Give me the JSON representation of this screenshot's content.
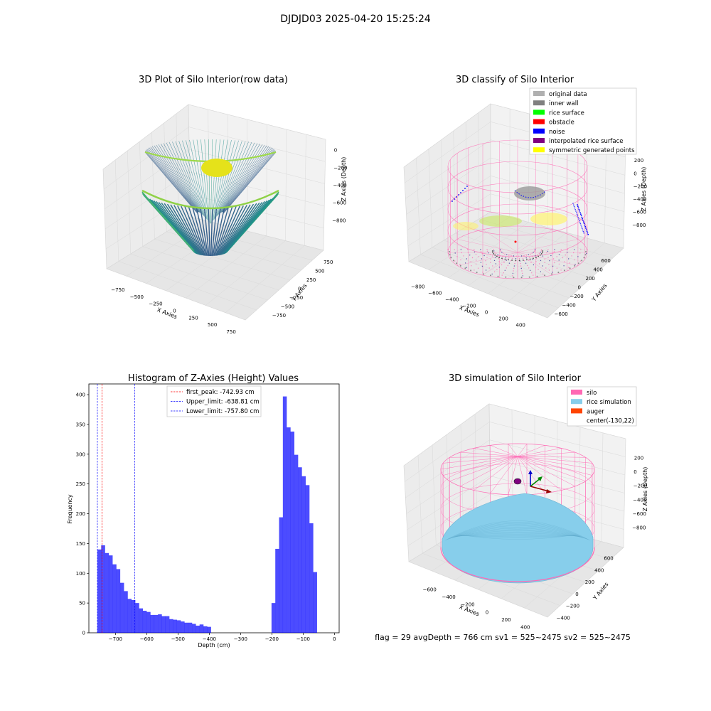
{
  "figure": {
    "suptitle": "DJDJD03 2025-04-20 15:25:24",
    "footer": "flag = 29  avgDepth = 766 cm  sv1 = 525~2475  sv2 = 525~2475"
  },
  "panels": {
    "raw": {
      "title": "3D Plot of Silo Interior(row data)",
      "xlabel": "X Axies",
      "ylabel": "Y Axies",
      "zlabel": "Z Axies (Depth)",
      "xticks": [
        "−750",
        "−500",
        "−250",
        "0",
        "250",
        "500",
        "750"
      ],
      "yticks": [
        "−750",
        "−500",
        "−250",
        "0",
        "250",
        "500",
        "750"
      ],
      "zticks": [
        "0",
        "−200",
        "−400",
        "−600",
        "−800"
      ]
    },
    "classify": {
      "title": "3D classify of Silo Interior",
      "xlabel": "X Axies",
      "ylabel": "Y Axies",
      "zlabel": "Z Axies (Depth)",
      "xticks": [
        "−800",
        "−600",
        "−400",
        "−200",
        "0",
        "200",
        "400"
      ],
      "yticks": [
        "600",
        "400",
        "200",
        "0",
        "−200",
        "−400",
        "−600"
      ],
      "zticks": [
        "200",
        "0",
        "−200",
        "−400",
        "−600",
        "−800"
      ],
      "legend": [
        {
          "label": "original data",
          "color": "#b0b0b0"
        },
        {
          "label": "inner wall",
          "color": "#808080"
        },
        {
          "label": "rice surface",
          "color": "#00ff00"
        },
        {
          "label": "obstacle",
          "color": "#ff0000"
        },
        {
          "label": "noise",
          "color": "#0000ff"
        },
        {
          "label": "interpolated rice surface",
          "color": "#800080"
        },
        {
          "label": "symmetric generated points",
          "color": "#ffff00"
        }
      ]
    },
    "simulation": {
      "title": "3D simulation of Silo Interior",
      "xlabel": "X Axies",
      "ylabel": "Y Axies",
      "zlabel": "Z Axies (Depth)",
      "xticks": [
        "−600",
        "−400",
        "−200",
        "0",
        "200",
        "400"
      ],
      "yticks": [
        "600",
        "400",
        "200",
        "0",
        "−200",
        "−400"
      ],
      "zticks": [
        "200",
        "0",
        "−200",
        "−400",
        "−600",
        "−800"
      ],
      "legend": [
        {
          "label": "silo",
          "color": "#ff69b4"
        },
        {
          "label": "rice simulation",
          "color": "#87ceeb"
        },
        {
          "label": "auger",
          "color": "#ff4500"
        },
        {
          "label": "center(-130,22)",
          "color": ""
        }
      ]
    }
  },
  "chart_data": [
    {
      "type": "bar",
      "title": "Histogram of Z-Axies (Height) Values",
      "xlabel": "Depth (cm)",
      "ylabel": "Frequency",
      "xlim": [
        -785,
        15
      ],
      "ylim": [
        0,
        418
      ],
      "xticks": [
        -700,
        -600,
        -500,
        -400,
        -300,
        -200,
        -100,
        0
      ],
      "yticks": [
        0,
        50,
        100,
        150,
        200,
        250,
        300,
        350,
        400
      ],
      "bar_color": "#0000ff",
      "bin_width": 12.1,
      "bin_left": [
        -757.8,
        -745.7,
        -733.6,
        -721.5,
        -709.4,
        -697.3,
        -685.2,
        -673.1,
        -661.0,
        -648.9,
        -636.8,
        -624.7,
        -612.6,
        -600.5,
        -588.4,
        -576.3,
        -564.2,
        -552.1,
        -540.0,
        -527.9,
        -515.8,
        -503.7,
        -491.6,
        -479.5,
        -467.4,
        -455.3,
        -443.2,
        -431.1,
        -419.0,
        -406.9,
        -394.8,
        -382.7,
        -370.6,
        -358.5,
        -346.4,
        -334.3,
        -322.2,
        -310.1,
        -298.0,
        -285.9,
        -273.8,
        -261.7,
        -249.6,
        -237.5,
        -225.4,
        -213.3,
        -201.2,
        -189.1,
        -177.0,
        -164.9,
        -152.8,
        -140.7,
        -128.6,
        -116.5,
        -104.4,
        -92.3,
        -80.2,
        -68.1,
        -56.0,
        -43.9,
        -31.8
      ],
      "counts": [
        140,
        147,
        134,
        130,
        115,
        107,
        84,
        70,
        57,
        55,
        50,
        41,
        37,
        35,
        30,
        30,
        31,
        28,
        28,
        23,
        22,
        21,
        19,
        17,
        17,
        15,
        12,
        14,
        11,
        10,
        0,
        0,
        0,
        0,
        0,
        0,
        0,
        0,
        0,
        0,
        0,
        0,
        0,
        0,
        0,
        0,
        50,
        141,
        194,
        397,
        345,
        338,
        299,
        278,
        263,
        248,
        184,
        102,
        0,
        0,
        0
      ],
      "vlines": [
        {
          "label": "first_peak: -742.93 cm",
          "x": -742.93,
          "color": "#ff0000"
        },
        {
          "label": "Upper_limit: -638.81 cm",
          "x": -638.81,
          "color": "#0000ff"
        },
        {
          "label": "Lower_limit: -757.80 cm",
          "x": -757.8,
          "color": "#0000ff"
        }
      ],
      "legend_position": "upper-center"
    }
  ]
}
